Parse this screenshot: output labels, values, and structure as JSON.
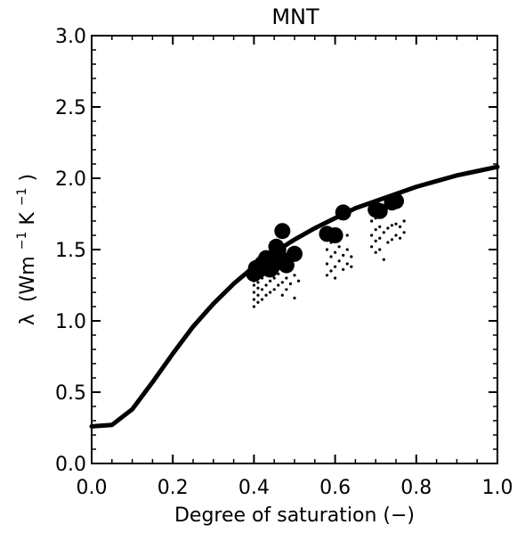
{
  "chart_data": {
    "type": "scatter",
    "title": "MNT",
    "xlabel": "Degree of saturation (−)",
    "ylabel_symbol": "λ",
    "ylabel_unit_open": "(Wm",
    "ylabel_exp1": "−1",
    "ylabel_unit_mid": "K",
    "ylabel_exp2": "−1",
    "ylabel_unit_close": ")",
    "xlim": [
      0.0,
      1.0
    ],
    "ylim": [
      0.0,
      3.0
    ],
    "x_ticks": [
      "0.0",
      "0.2",
      "0.4",
      "0.6",
      "0.8",
      "1.0"
    ],
    "y_ticks": [
      "0.0",
      "0.5",
      "1.0",
      "1.5",
      "2.0",
      "2.5",
      "3.0"
    ],
    "grid": false,
    "series": [
      {
        "kind": "curve",
        "color": "#000000",
        "x": [
          0.0,
          0.05,
          0.1,
          0.15,
          0.2,
          0.25,
          0.3,
          0.35,
          0.4,
          0.45,
          0.5,
          0.55,
          0.6,
          0.65,
          0.7,
          0.75,
          0.8,
          0.85,
          0.9,
          0.95,
          1.0
        ],
        "y": [
          0.26,
          0.27,
          0.38,
          0.57,
          0.77,
          0.96,
          1.12,
          1.26,
          1.38,
          1.48,
          1.57,
          1.65,
          1.72,
          1.79,
          1.84,
          1.89,
          1.94,
          1.98,
          2.02,
          2.05,
          2.08
        ]
      },
      {
        "kind": "large-points",
        "color": "#000000",
        "x": [
          0.4,
          0.405,
          0.41,
          0.42,
          0.43,
          0.44,
          0.445,
          0.45,
          0.455,
          0.46,
          0.465,
          0.47,
          0.48,
          0.5,
          0.58,
          0.6,
          0.62,
          0.7,
          0.71,
          0.74,
          0.75
        ],
        "y": [
          1.33,
          1.37,
          1.35,
          1.4,
          1.44,
          1.36,
          1.38,
          1.4,
          1.52,
          1.5,
          1.44,
          1.63,
          1.39,
          1.47,
          1.61,
          1.6,
          1.76,
          1.78,
          1.77,
          1.83,
          1.84
        ]
      },
      {
        "kind": "small-points",
        "color": "#000000",
        "x": [
          0.4,
          0.4,
          0.4,
          0.4,
          0.4,
          0.41,
          0.41,
          0.41,
          0.41,
          0.42,
          0.42,
          0.42,
          0.43,
          0.43,
          0.43,
          0.43,
          0.44,
          0.44,
          0.44,
          0.45,
          0.45,
          0.45,
          0.46,
          0.46,
          0.47,
          0.47,
          0.47,
          0.48,
          0.48,
          0.49,
          0.5,
          0.5,
          0.51,
          0.58,
          0.58,
          0.58,
          0.59,
          0.59,
          0.59,
          0.6,
          0.6,
          0.6,
          0.6,
          0.61,
          0.61,
          0.61,
          0.62,
          0.62,
          0.63,
          0.63,
          0.63,
          0.64,
          0.64,
          0.69,
          0.69,
          0.69,
          0.7,
          0.7,
          0.7,
          0.7,
          0.71,
          0.71,
          0.71,
          0.72,
          0.72,
          0.73,
          0.73,
          0.74,
          0.74,
          0.75,
          0.75,
          0.76,
          0.76,
          0.77,
          0.77
        ],
        "y": [
          1.1,
          1.15,
          1.2,
          1.25,
          1.28,
          1.13,
          1.18,
          1.23,
          1.27,
          1.15,
          1.22,
          1.3,
          1.18,
          1.25,
          1.32,
          1.4,
          1.2,
          1.28,
          1.35,
          1.22,
          1.3,
          1.45,
          1.25,
          1.33,
          1.18,
          1.27,
          1.38,
          1.22,
          1.3,
          1.26,
          1.16,
          1.32,
          1.28,
          1.32,
          1.4,
          1.5,
          1.35,
          1.45,
          1.55,
          1.3,
          1.38,
          1.48,
          1.58,
          1.42,
          1.52,
          1.62,
          1.36,
          1.46,
          1.4,
          1.5,
          1.6,
          1.38,
          1.45,
          1.52,
          1.6,
          1.7,
          1.48,
          1.56,
          1.64,
          1.72,
          1.5,
          1.58,
          1.66,
          1.43,
          1.62,
          1.55,
          1.65,
          1.57,
          1.67,
          1.6,
          1.68,
          1.58,
          1.66,
          1.62,
          1.7
        ]
      }
    ]
  }
}
